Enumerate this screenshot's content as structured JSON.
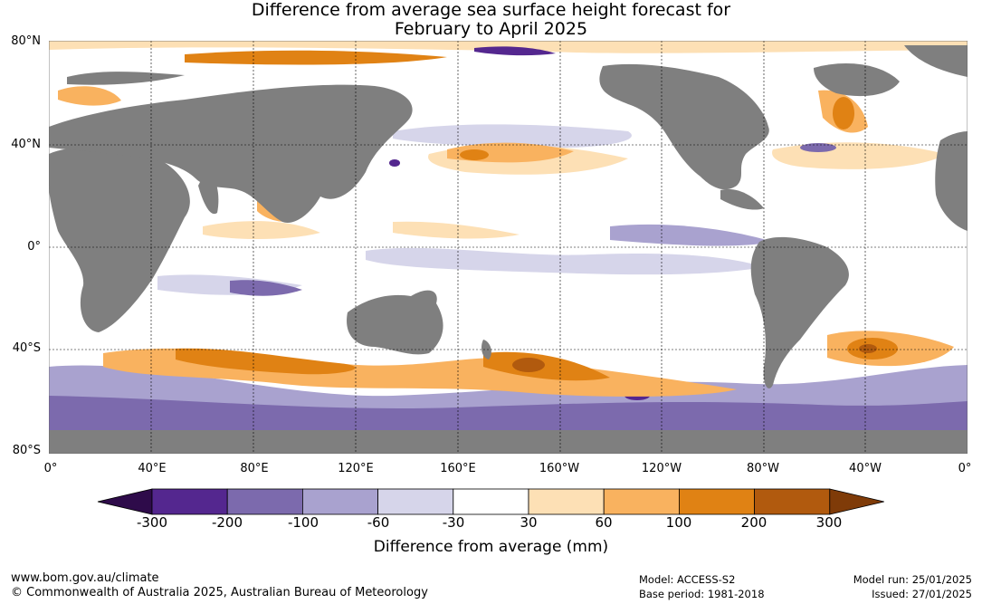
{
  "title_line1": "Difference from average sea surface height forecast for",
  "title_line2": "February to April 2025",
  "lat_labels": [
    "80°N",
    "40°N",
    "0°",
    "40°S",
    "80°S"
  ],
  "lon_labels": [
    "0°",
    "40°E",
    "80°E",
    "120°E",
    "160°E",
    "160°W",
    "120°W",
    "80°W",
    "40°W",
    "0°"
  ],
  "colorbar": {
    "labels": [
      "-300",
      "-200",
      "-100",
      "-60",
      "-30",
      "30",
      "60",
      "100",
      "200",
      "300"
    ],
    "colors": [
      "#2e0b4a",
      "#54278f",
      "#7c6aad",
      "#a9a2cf",
      "#d6d5ea",
      "#ffffff",
      "#fde0b5",
      "#f9b25f",
      "#e08214",
      "#b15a0e",
      "#7f3b08"
    ],
    "units_label": "Difference from average (mm)"
  },
  "colors": {
    "land": "#7f7f7f",
    "ocean_base": "#ffffff"
  },
  "footer": {
    "url": "www.bom.gov.au/climate",
    "copyright": "© Commonwealth of Australia 2025, Australian Bureau of Meteorology",
    "model": "Model: ACCESS-S2",
    "base_period": "Base period: 1981-2018",
    "model_run": "Model run: 25/01/2025",
    "issued": "Issued: 27/01/2025"
  }
}
